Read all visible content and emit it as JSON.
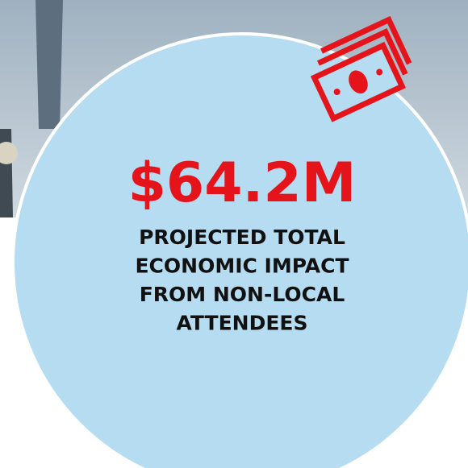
{
  "headline": "$64.2M",
  "description": [
    "PROJECTED TOTAL",
    "ECONOMIC IMPACT",
    "FROM NON-LOCAL",
    "ATTENDEES"
  ]
}
